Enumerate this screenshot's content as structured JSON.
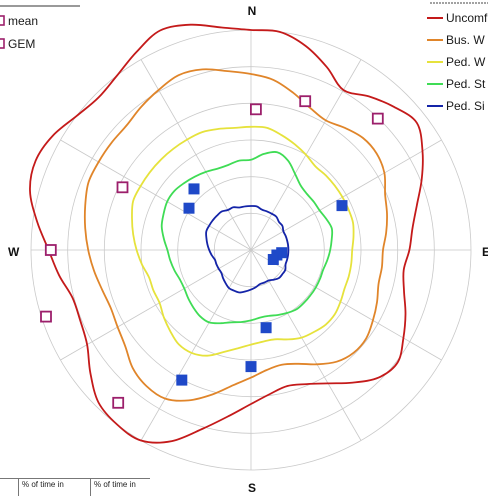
{
  "chart_data": {
    "type": "polar",
    "directions": {
      "n": "N",
      "e": "E",
      "s": "S",
      "w": "W"
    },
    "marker_legend": [
      {
        "label": "mean",
        "shape": "hollow-square",
        "color": "#9c1f6b"
      },
      {
        "label": "GEM",
        "shape": "filled-square",
        "color": "#1f49c8"
      }
    ],
    "contour_legend": [
      {
        "label": "Uncomf",
        "color": "#c41a1a"
      },
      {
        "label": "Bus. W",
        "color": "#e0852a"
      },
      {
        "label": "Ped. W",
        "color": "#e6e23c"
      },
      {
        "label": "Ped. St",
        "color": "#3fdc55"
      },
      {
        "label": "Ped. Si",
        "color": "#1424a8"
      }
    ],
    "contours": [
      {
        "label": "Uncomf",
        "r": [
          1.0,
          1.0,
          0.96,
          0.9,
          0.84,
          0.88,
          0.92,
          0.95,
          0.9,
          0.84,
          0.78,
          0.74,
          0.72,
          0.7,
          0.72,
          0.76,
          0.8,
          0.84,
          0.82,
          0.76,
          0.7,
          0.66,
          0.64,
          0.66,
          0.7,
          0.76,
          0.84,
          0.94,
          1.0,
          1.0,
          0.98,
          0.92,
          0.86,
          0.84,
          0.84,
          0.88,
          0.92,
          0.98,
          1.04,
          1.06,
          1.04,
          1.0,
          0.98,
          1.0,
          1.04,
          1.08,
          1.06,
          1.02
        ]
      },
      {
        "label": "Bus. W",
        "r": [
          0.8,
          0.78,
          0.74,
          0.7,
          0.68,
          0.7,
          0.72,
          0.72,
          0.7,
          0.66,
          0.64,
          0.62,
          0.6,
          0.6,
          0.6,
          0.62,
          0.64,
          0.66,
          0.66,
          0.64,
          0.6,
          0.56,
          0.54,
          0.55,
          0.58,
          0.62,
          0.68,
          0.74,
          0.78,
          0.78,
          0.76,
          0.72,
          0.7,
          0.69,
          0.7,
          0.72,
          0.74,
          0.76,
          0.78,
          0.8,
          0.8,
          0.8,
          0.8,
          0.82,
          0.84,
          0.86,
          0.85,
          0.82
        ]
      },
      {
        "label": "Ped. W",
        "r": [
          0.56,
          0.56,
          0.54,
          0.52,
          0.5,
          0.48,
          0.48,
          0.48,
          0.48,
          0.48,
          0.48,
          0.47,
          0.46,
          0.46,
          0.46,
          0.46,
          0.47,
          0.48,
          0.48,
          0.47,
          0.46,
          0.44,
          0.42,
          0.42,
          0.43,
          0.45,
          0.48,
          0.52,
          0.54,
          0.54,
          0.52,
          0.5,
          0.48,
          0.48,
          0.48,
          0.5,
          0.52,
          0.54,
          0.56,
          0.58,
          0.58,
          0.58,
          0.58,
          0.58,
          0.58,
          0.58,
          0.57,
          0.56
        ]
      },
      {
        "label": "Ped. St",
        "r": [
          0.41,
          0.44,
          0.46,
          0.44,
          0.4,
          0.37,
          0.36,
          0.36,
          0.36,
          0.37,
          0.38,
          0.37,
          0.36,
          0.35,
          0.34,
          0.34,
          0.34,
          0.34,
          0.34,
          0.34,
          0.33,
          0.32,
          0.31,
          0.31,
          0.32,
          0.33,
          0.34,
          0.36,
          0.38,
          0.38,
          0.37,
          0.36,
          0.35,
          0.35,
          0.36,
          0.37,
          0.38,
          0.4,
          0.42,
          0.43,
          0.44,
          0.44,
          0.43,
          0.42,
          0.41,
          0.4,
          0.4,
          0.41
        ]
      },
      {
        "label": "Ped. Si",
        "r": [
          0.2,
          0.2,
          0.19,
          0.19,
          0.19,
          0.19,
          0.18,
          0.18,
          0.17,
          0.17,
          0.17,
          0.17,
          0.17,
          0.17,
          0.17,
          0.17,
          0.18,
          0.18,
          0.18,
          0.17,
          0.16,
          0.16,
          0.16,
          0.17,
          0.18,
          0.19,
          0.2,
          0.2,
          0.2,
          0.19,
          0.18,
          0.17,
          0.17,
          0.17,
          0.17,
          0.18,
          0.19,
          0.2,
          0.21,
          0.22,
          0.22,
          0.22,
          0.22,
          0.22,
          0.21,
          0.21,
          0.2,
          0.2
        ]
      }
    ],
    "mean_points": [
      {
        "bearing": 20,
        "r": 0.72
      },
      {
        "bearing": 44,
        "r": 0.83
      },
      {
        "bearing": 2,
        "r": 0.64
      },
      {
        "bearing": 296,
        "r": 0.65
      },
      {
        "bearing": 270,
        "r": 0.91
      },
      {
        "bearing": 252,
        "r": 0.98
      },
      {
        "bearing": 221,
        "r": 0.92
      }
    ],
    "gem_points": [
      {
        "bearing": 64,
        "r": 0.46
      },
      {
        "bearing": 317,
        "r": 0.38
      },
      {
        "bearing": 304,
        "r": 0.34
      },
      {
        "bearing": 95,
        "r": 0.14
      },
      {
        "bearing": 101,
        "r": 0.12
      },
      {
        "bearing": 113,
        "r": 0.11
      },
      {
        "bearing": 169,
        "r": 0.36
      },
      {
        "bearing": 180,
        "r": 0.53
      },
      {
        "bearing": 208,
        "r": 0.67
      }
    ],
    "rings": 6,
    "spokes_deg": 30,
    "grid": true,
    "legend_position": "top-left and top-right",
    "table_headers": [
      "% of time in",
      "% of time in"
    ]
  }
}
